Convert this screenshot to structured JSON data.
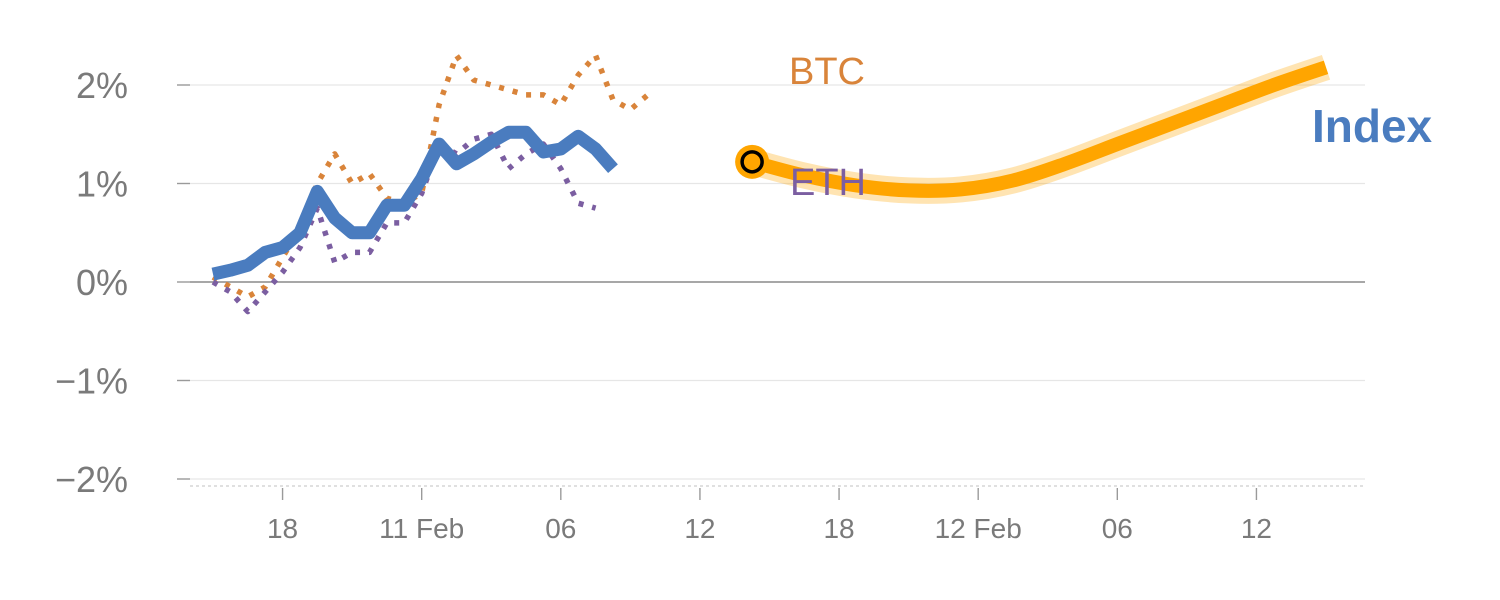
{
  "chart_data": {
    "type": "line",
    "y_unit": "percent",
    "ylim": [
      -2.1,
      2.6
    ],
    "y_ticks": [
      {
        "value": 2,
        "label": "2%"
      },
      {
        "value": 1,
        "label": "1%"
      },
      {
        "value": 0,
        "label": "0%"
      },
      {
        "value": -1,
        "label": "−1%"
      },
      {
        "value": -2,
        "label": "−2%"
      }
    ],
    "x_ticks": [
      {
        "i": 4,
        "label": "18"
      },
      {
        "i": 12,
        "label": "11 Feb"
      },
      {
        "i": 20,
        "label": "06"
      },
      {
        "i": 28,
        "label": "12"
      },
      {
        "i": 36,
        "label": "18"
      },
      {
        "i": 44,
        "label": "12 Feb"
      },
      {
        "i": 52,
        "label": "06"
      },
      {
        "i": 60,
        "label": "12"
      }
    ],
    "xlim": [
      -2,
      65
    ],
    "grid": true,
    "series": [
      {
        "name": "BTC",
        "style": "dotted",
        "color": "#d9843a",
        "x": [
          0,
          1,
          2,
          3,
          4,
          5,
          6,
          7,
          8,
          9,
          10,
          11,
          12,
          13,
          14,
          15,
          16,
          17,
          18,
          19,
          20,
          21,
          22,
          23,
          24,
          25,
          26,
          27,
          28,
          29,
          30,
          31
        ],
        "values": [
          0.05,
          -0.05,
          -0.15,
          -0.05,
          0.25,
          0.55,
          1.0,
          1.3,
          1.0,
          1.1,
          0.85,
          0.8,
          0.9,
          1.8,
          2.3,
          2.05,
          2.0,
          1.95,
          1.9,
          1.9,
          1.8,
          2.1,
          2.3,
          1.85,
          1.75,
          1.9,
          null,
          null,
          null,
          null,
          null,
          null
        ]
      },
      {
        "name": "ETH",
        "style": "dotted",
        "color": "#7b5ea1",
        "x": [
          0,
          1,
          2,
          3,
          4,
          5,
          6,
          7,
          8,
          9,
          10,
          11,
          12,
          13,
          14,
          15,
          16,
          17,
          18,
          19,
          20,
          21,
          22,
          23,
          24,
          25,
          26,
          27,
          28,
          29,
          30,
          31
        ],
        "values": [
          0.0,
          -0.1,
          -0.3,
          -0.1,
          0.1,
          0.35,
          0.75,
          0.2,
          0.3,
          0.3,
          0.6,
          0.6,
          0.9,
          1.4,
          1.3,
          1.45,
          1.5,
          1.15,
          1.3,
          1.4,
          1.15,
          0.8,
          0.75,
          null,
          null,
          null,
          null,
          null,
          null,
          null,
          null,
          null
        ]
      },
      {
        "name": "Index",
        "style": "solid",
        "color": "#4a7cbf",
        "x": [
          0,
          1,
          2,
          3,
          4,
          5,
          6,
          7,
          8,
          9,
          10,
          11,
          12,
          13,
          14,
          15,
          16,
          17,
          18,
          19,
          20,
          21,
          22,
          23,
          24,
          25,
          26,
          27,
          28,
          29,
          30,
          31
        ],
        "values": [
          0.08,
          0.12,
          0.17,
          0.3,
          0.35,
          0.5,
          0.92,
          0.65,
          0.5,
          0.5,
          0.78,
          0.78,
          1.05,
          1.4,
          1.2,
          1.3,
          1.42,
          1.52,
          1.52,
          1.32,
          1.35,
          1.48,
          1.35,
          1.15,
          null,
          null,
          null,
          null,
          null,
          null,
          null,
          null
        ]
      }
    ],
    "forecast": {
      "color": "#ffa500",
      "x": [
        31,
        34,
        37,
        40,
        43,
        46,
        49,
        52,
        55,
        58,
        61,
        64
      ],
      "values": [
        1.22,
        1.08,
        0.98,
        0.93,
        0.94,
        1.03,
        1.2,
        1.4,
        1.6,
        1.8,
        2.0,
        2.18
      ]
    },
    "marker": {
      "x": 31,
      "value": 1.22,
      "color": "#ffa500"
    },
    "labels": [
      {
        "series": "BTC",
        "text": "BTC",
        "color": "#d9843a"
      },
      {
        "series": "ETH",
        "text": "ETH",
        "color": "#7b5ea1"
      },
      {
        "series": "Index",
        "text": "Index",
        "color": "#4a7cbf"
      }
    ]
  }
}
